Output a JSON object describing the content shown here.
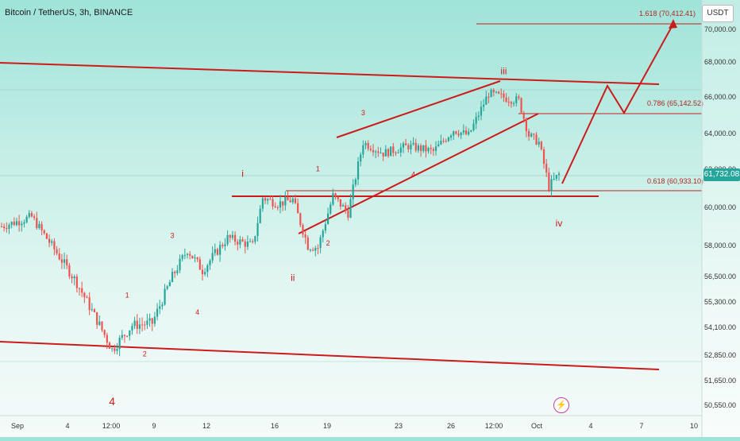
{
  "header": {
    "title": "Bitcoin / TetherUS, 3h, BINANCE",
    "currency": "USDT",
    "last_price": "61,732.08"
  },
  "chart_data": {
    "type": "candlestick",
    "ylim": [
      50000,
      71200
    ],
    "y_ticks": [
      {
        "v": 70000,
        "label": "70,000.00"
      },
      {
        "v": 68000,
        "label": "68,000.00"
      },
      {
        "v": 66000,
        "label": "66,000.00"
      },
      {
        "v": 64000,
        "label": "64,000.00"
      },
      {
        "v": 62000,
        "label": "62,000.00"
      },
      {
        "v": 60000,
        "label": "60,000.00"
      },
      {
        "v": 58000,
        "label": "58,000.00"
      },
      {
        "v": 56500,
        "label": "56,500.00"
      },
      {
        "v": 55300,
        "label": "55,300.00"
      },
      {
        "v": 54100,
        "label": "54,100.00"
      },
      {
        "v": 52850,
        "label": "52,850.00"
      },
      {
        "v": 51650,
        "label": "51,650.00"
      },
      {
        "v": 50550,
        "label": "50,550.00"
      }
    ],
    "x_ticks": [
      "Sep",
      "4",
      "12:00",
      "9",
      "12",
      "16",
      "19",
      "23",
      "26",
      "12:00",
      "Oct",
      "4",
      "7",
      "10"
    ],
    "anchors": [
      {
        "t": 0,
        "p": 59000
      },
      {
        "t": 12,
        "p": 59500
      },
      {
        "t": 20,
        "p": 58000
      },
      {
        "t": 30,
        "p": 56200
      },
      {
        "t": 44,
        "p": 53100
      },
      {
        "t": 52,
        "p": 54200
      },
      {
        "t": 60,
        "p": 54300
      },
      {
        "t": 68,
        "p": 56500
      },
      {
        "t": 74,
        "p": 57800
      },
      {
        "t": 80,
        "p": 56800
      },
      {
        "t": 90,
        "p": 58400
      },
      {
        "t": 100,
        "p": 58000
      },
      {
        "t": 104,
        "p": 60500
      },
      {
        "t": 110,
        "p": 60200
      },
      {
        "t": 116,
        "p": 60400
      },
      {
        "t": 122,
        "p": 58000
      },
      {
        "t": 126,
        "p": 57900
      },
      {
        "t": 132,
        "p": 60600
      },
      {
        "t": 138,
        "p": 59700
      },
      {
        "t": 144,
        "p": 63500
      },
      {
        "t": 152,
        "p": 62900
      },
      {
        "t": 162,
        "p": 63300
      },
      {
        "t": 172,
        "p": 63000
      },
      {
        "t": 180,
        "p": 64200
      },
      {
        "t": 186,
        "p": 63900
      },
      {
        "t": 194,
        "p": 66200
      },
      {
        "t": 202,
        "p": 65900
      },
      {
        "t": 206,
        "p": 65800
      },
      {
        "t": 210,
        "p": 63900
      },
      {
        "t": 214,
        "p": 63500
      },
      {
        "t": 218,
        "p": 61100
      },
      {
        "t": 222,
        "p": 61732
      }
    ],
    "fib_levels": [
      {
        "label": "1.618 (70,412.41)",
        "value": 70412.41
      },
      {
        "label": "0.786 (65,142.52)",
        "value": 65142.52
      },
      {
        "label": "0.618 (60,933.10)",
        "value": 60933.1
      }
    ],
    "wave_labels": [
      {
        "text": "4",
        "t": 44,
        "p": 50550,
        "style": "big"
      },
      {
        "text": "1",
        "t": 50,
        "p": 55500,
        "style": "small"
      },
      {
        "text": "2",
        "t": 57,
        "p": 52800,
        "style": "small"
      },
      {
        "text": "3",
        "t": 68,
        "p": 58400,
        "style": "small"
      },
      {
        "text": "4",
        "t": 78,
        "p": 54700,
        "style": "small"
      },
      {
        "text": "i",
        "t": 96,
        "p": 61600,
        "style": "roman"
      },
      {
        "text": "ii",
        "t": 116,
        "p": 56300,
        "style": "roman"
      },
      {
        "text": "1",
        "t": 126,
        "p": 61900,
        "style": "small"
      },
      {
        "text": "2",
        "t": 130,
        "p": 58000,
        "style": "small"
      },
      {
        "text": "3",
        "t": 144,
        "p": 65000,
        "style": "small"
      },
      {
        "text": "4",
        "t": 164,
        "p": 61600,
        "style": "small"
      },
      {
        "text": "iii",
        "t": 200,
        "p": 67300,
        "style": "roman"
      },
      {
        "text": "iv",
        "t": 222,
        "p": 59000,
        "style": "roman"
      }
    ],
    "colors": {
      "up": "#26a69a",
      "down": "#ef5350",
      "annotation": "#cc1b1b",
      "grid": "#b9dcd5"
    }
  }
}
